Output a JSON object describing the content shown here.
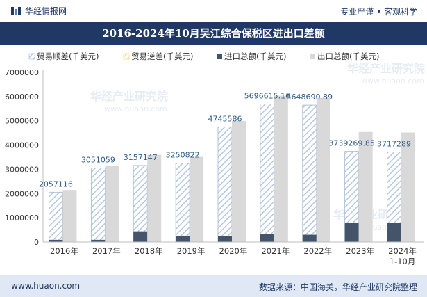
{
  "header": {
    "brand": "华经情报网",
    "tagline": "专业严谨 • 客观科学"
  },
  "title": "2016-2024年10月吴江综合保税区进出口差额",
  "footer": {
    "website": "www.huaon.com",
    "source": "数据来源：中国海关，华经产业研究院整理"
  },
  "watermark": "华经产业研究院",
  "watermark_url": "www.huaon.com",
  "chart_data": {
    "type": "bar",
    "categories": [
      "2016年",
      "2017年",
      "2018年",
      "2019年",
      "2020年",
      "2021年",
      "2022年",
      "2023年",
      "2024年\n1-10月"
    ],
    "series": [
      {
        "name": "贸易顺差(千美元)",
        "values": [
          2057116,
          3051059,
          3157147,
          3250822,
          4745586,
          5696615.16,
          5648690.89,
          3739269.85,
          3717289
        ],
        "color": "#b4c8e1",
        "pattern": "hatch"
      },
      {
        "name": "贸易逆差(千美元)",
        "values": [
          0,
          0,
          0,
          0,
          0,
          0,
          0,
          0,
          0
        ],
        "color": "#f6d98a",
        "pattern": "hatch"
      },
      {
        "name": "进口总额(千美元)",
        "values": [
          90000,
          90000,
          440000,
          260000,
          250000,
          340000,
          300000,
          800000,
          800000
        ],
        "color": "#44546a"
      },
      {
        "name": "出口总额(千美元)",
        "values": [
          2147116,
          3141059,
          3597147,
          3510822,
          4995586,
          6036615,
          5948691,
          4539270,
          4517289
        ],
        "color": "#d9d9d9"
      }
    ],
    "data_labels": [
      "2057116",
      "3051059",
      "3157147",
      "3250822",
      "4745586",
      "5696615.16",
      "5648690.89",
      "3739269.85",
      "3717289"
    ],
    "y_ticks": [
      "0",
      "1000000",
      "2000000",
      "3000000",
      "4000000",
      "5000000",
      "6000000",
      "7000000"
    ],
    "ylim": [
      0,
      7000000
    ],
    "legend_position": "top",
    "grid": false
  },
  "colors": {
    "brand_blue": "#1f3864",
    "label_blue": "#2f5d8a"
  }
}
